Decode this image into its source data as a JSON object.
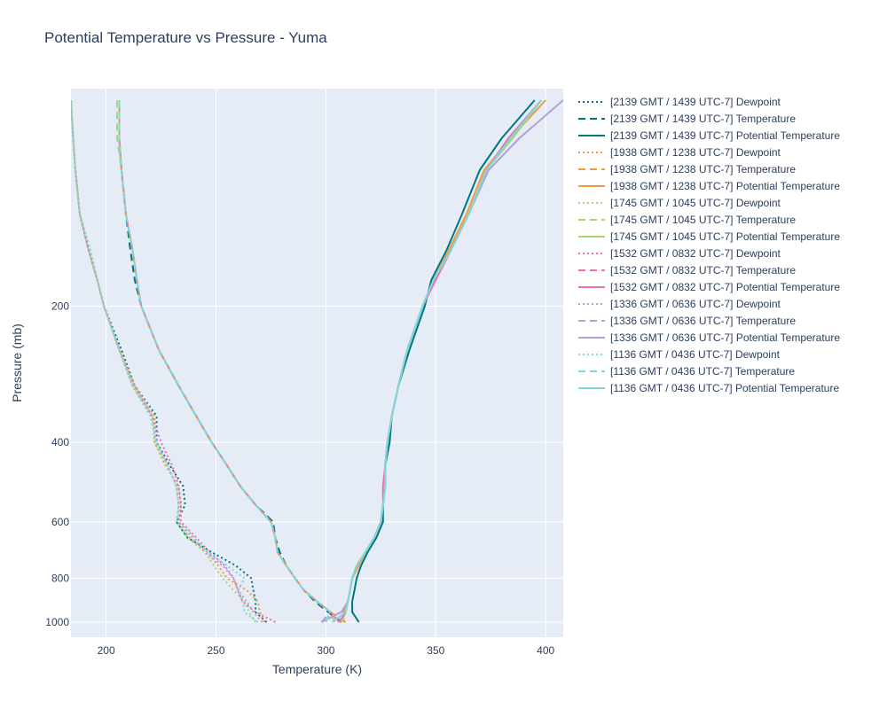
{
  "chart_data": {
    "type": "line",
    "title": "Potential Temperature vs Pressure - Yuma",
    "xlabel": "Temperature (K)",
    "ylabel": "Pressure (mb)",
    "xlim": [
      184,
      408
    ],
    "ylim": [
      1080,
      66
    ],
    "y_scale": "log",
    "x_ticks": [
      200,
      250,
      300,
      350,
      400
    ],
    "y_ticks": [
      200,
      400,
      600,
      800,
      1000
    ],
    "grid": true,
    "legend_position": "right",
    "pressure_levels": [
      1000,
      950,
      900,
      850,
      800,
      750,
      700,
      650,
      600,
      550,
      500,
      450,
      400,
      350,
      300,
      250,
      200,
      175,
      150,
      125,
      100,
      85,
      70
    ],
    "series": [
      {
        "name": "[2139 GMT / 1439 UTC-7] Dewpoint",
        "color": "#00777f",
        "dash": "dot",
        "values": [
          273,
          268,
          268,
          267,
          266,
          259,
          248,
          237,
          232,
          236,
          235,
          229,
          223,
          223,
          213,
          207,
          199,
          196,
          192,
          188,
          186,
          185,
          184
        ]
      },
      {
        "name": "[2139 GMT / 1439 UTC-7] Temperature",
        "color": "#00777f",
        "dash": "dash",
        "values": [
          307,
          301,
          295,
          290,
          286,
          282,
          279,
          277,
          276,
          268,
          261,
          255,
          248,
          241,
          233,
          224,
          216,
          213,
          211,
          209,
          207,
          206,
          206
        ]
      },
      {
        "name": "[2139 GMT / 1439 UTC-7] Potential Temperature",
        "color": "#00777f",
        "dash": "solid",
        "values": [
          315,
          312,
          312,
          313,
          314,
          316,
          319,
          323,
          326,
          326,
          327,
          327,
          329,
          330,
          333,
          338,
          345,
          348,
          355,
          362,
          370,
          380,
          395
        ]
      },
      {
        "name": "[1938 GMT / 1238 UTC-7] Dewpoint",
        "color": "#f59a3c",
        "dash": "dot",
        "values": [
          272,
          270,
          269,
          264,
          255,
          251,
          246,
          238,
          233,
          234,
          233,
          227,
          222,
          222,
          213,
          206,
          199,
          196,
          192,
          188,
          186,
          185,
          184
        ]
      },
      {
        "name": "[1938 GMT / 1238 UTC-7] Temperature",
        "color": "#f59a3c",
        "dash": "dash",
        "values": [
          309,
          302,
          296,
          290,
          286,
          282,
          278,
          277,
          275,
          268,
          261,
          255,
          248,
          241,
          233,
          224,
          216,
          214,
          212,
          209,
          207,
          206,
          206
        ]
      },
      {
        "name": "[1938 GMT / 1238 UTC-7] Potential Temperature",
        "color": "#f59a3c",
        "dash": "solid",
        "values": [
          308,
          308,
          310,
          311,
          312,
          315,
          318,
          322,
          325,
          326,
          327,
          327,
          328,
          330,
          333,
          337,
          344,
          349,
          356,
          364,
          372,
          384,
          400
        ]
      },
      {
        "name": "[1745 GMT / 1045 UTC-7] Dewpoint",
        "color": "#a6d96a",
        "dash": "dot",
        "values": [
          268,
          265,
          263,
          258,
          253,
          249,
          245,
          237,
          232,
          233,
          232,
          228,
          222,
          221,
          212,
          206,
          199,
          196,
          192,
          188,
          186,
          185,
          184
        ]
      },
      {
        "name": "[1745 GMT / 1045 UTC-7] Temperature",
        "color": "#a6d96a",
        "dash": "dash",
        "values": [
          304,
          302,
          296,
          290,
          286,
          282,
          278,
          277,
          275,
          268,
          261,
          255,
          248,
          241,
          233,
          224,
          216,
          214,
          212,
          209,
          207,
          205,
          205
        ]
      },
      {
        "name": "[1745 GMT / 1045 UTC-7] Potential Temperature",
        "color": "#a6d96a",
        "dash": "solid",
        "values": [
          307,
          309,
          310,
          311,
          312,
          314,
          318,
          322,
          325,
          326,
          327,
          327,
          328,
          330,
          333,
          337,
          344,
          349,
          357,
          365,
          373,
          385,
          398
        ]
      },
      {
        "name": "[1532 GMT / 0832 UTC-7] Dewpoint",
        "color": "#f06eb4",
        "dash": "dot",
        "values": [
          277,
          268,
          262,
          260,
          258,
          254,
          247,
          241,
          234,
          234,
          233,
          230,
          225,
          221,
          212,
          206,
          199,
          196,
          192,
          188,
          186,
          185,
          184
        ]
      },
      {
        "name": "[1532 GMT / 0832 UTC-7] Temperature",
        "color": "#f06eb4",
        "dash": "dash",
        "values": [
          306,
          302,
          296,
          290,
          286,
          282,
          278,
          277,
          275,
          268,
          261,
          255,
          248,
          241,
          233,
          224,
          216,
          214,
          212,
          209,
          207,
          206,
          206
        ]
      },
      {
        "name": "[1532 GMT / 0832 UTC-7] Potential Temperature",
        "color": "#f06eb4",
        "dash": "solid",
        "values": [
          306,
          309,
          310,
          311,
          312,
          314,
          318,
          322,
          325,
          326,
          326,
          327,
          328,
          330,
          333,
          337,
          344,
          350,
          357,
          365,
          373,
          383,
          398
        ]
      },
      {
        "name": "[1336 GMT / 0636 UTC-7] Dewpoint",
        "color": "#b49edc",
        "dash": "dot",
        "values": [
          271,
          267,
          264,
          260,
          258,
          253,
          245,
          240,
          233,
          233,
          232,
          228,
          223,
          221,
          213,
          206,
          199,
          196,
          192,
          188,
          186,
          185,
          184
        ]
      },
      {
        "name": "[1336 GMT / 0636 UTC-7] Temperature",
        "color": "#b49edc",
        "dash": "dash",
        "values": [
          298,
          302,
          296,
          290,
          286,
          282,
          278,
          277,
          275,
          268,
          261,
          255,
          248,
          241,
          233,
          224,
          216,
          214,
          212,
          209,
          207,
          206,
          206
        ]
      },
      {
        "name": "[1336 GMT / 0636 UTC-7] Potential Temperature",
        "color": "#b49edc",
        "dash": "solid",
        "values": [
          298,
          307,
          310,
          311,
          312,
          314,
          318,
          322,
          325,
          326,
          327,
          327,
          328,
          330,
          333,
          337,
          344,
          349,
          357,
          365,
          374,
          388,
          408
        ]
      },
      {
        "name": "[1136 GMT / 0436 UTC-7] Dewpoint",
        "color": "#7ed8d8",
        "dash": "dot",
        "values": [
          269,
          263,
          262,
          260,
          263,
          255,
          246,
          239,
          232,
          233,
          232,
          228,
          223,
          220,
          212,
          206,
          199,
          196,
          193,
          188,
          186,
          185,
          184
        ]
      },
      {
        "name": "[1136 GMT / 0436 UTC-7] Temperature",
        "color": "#7ed8d8",
        "dash": "dash",
        "values": [
          300,
          302,
          296,
          290,
          286,
          282,
          278,
          277,
          275,
          268,
          261,
          255,
          248,
          241,
          233,
          224,
          216,
          214,
          212,
          209,
          207,
          206,
          206
        ]
      },
      {
        "name": "[1136 GMT / 0436 UTC-7] Potential Temperature",
        "color": "#7ed8d8",
        "dash": "solid",
        "values": [
          303,
          309,
          310,
          311,
          312,
          314,
          318,
          322,
          325,
          326,
          327,
          327,
          328,
          330,
          333,
          337,
          344,
          349,
          357,
          365,
          373,
          384,
          398
        ]
      }
    ]
  }
}
